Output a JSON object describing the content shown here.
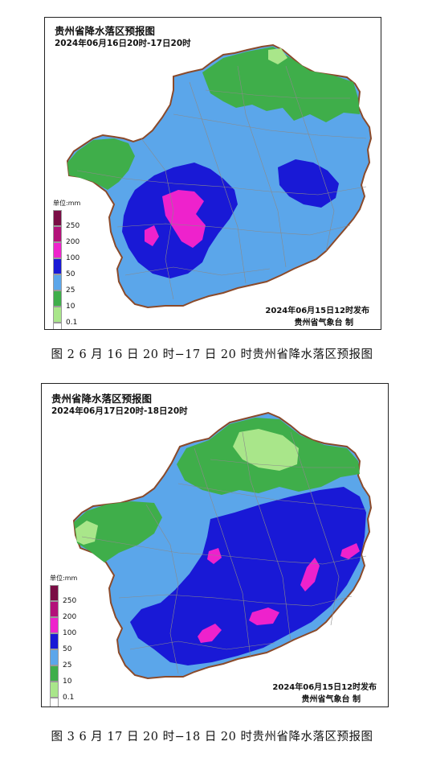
{
  "colors": {
    "c_0_1": "#ffffff",
    "c_10": "#a9e68a",
    "c_25": "#3fae4a",
    "c_50": "#5ba6ea",
    "c_100": "#1919d6",
    "c_200": "#ee22cc",
    "c_250": "#7a0d45",
    "border": "#8b4a2a",
    "county": "#8a8a8a"
  },
  "maps": [
    {
      "title": "贵州省降水落区预报图",
      "period": "2024年06月16日20时-17日20时",
      "legend_title": "单位:mm",
      "legend": [
        {
          "label": "250",
          "color": "#7a0d45"
        },
        {
          "label": "200",
          "color": "#b3117a"
        },
        {
          "label": "100",
          "color": "#ee22cc"
        },
        {
          "label": "50",
          "color": "#1919d6"
        },
        {
          "label": "25",
          "color": "#5ba6ea"
        },
        {
          "label": "10",
          "color": "#3fae4a"
        },
        {
          "label": "0.1",
          "color": "#a9e68a"
        }
      ],
      "issue_time": "2024年06月15日12时发布",
      "agency": "贵州省气象台 制",
      "caption": "图 2  6 月 16 日 20 时−17 日 20 时贵州省降水落区预报图"
    },
    {
      "title": "贵州省降水落区预报图",
      "period": "2024年06月17日20时-18日20时",
      "legend_title": "单位:mm",
      "legend": [
        {
          "label": "250",
          "color": "#7a0d45"
        },
        {
          "label": "200",
          "color": "#b3117a"
        },
        {
          "label": "100",
          "color": "#ee22cc"
        },
        {
          "label": "50",
          "color": "#1919d6"
        },
        {
          "label": "25",
          "color": "#5ba6ea"
        },
        {
          "label": "10",
          "color": "#3fae4a"
        },
        {
          "label": "0.1",
          "color": "#a9e68a"
        }
      ],
      "issue_time": "2024年06月15日12时发布",
      "agency": "贵州省气象台 制",
      "caption": "图 3  6 月 17 日 20 时−18 日 20 时贵州省降水落区预报图"
    }
  ]
}
